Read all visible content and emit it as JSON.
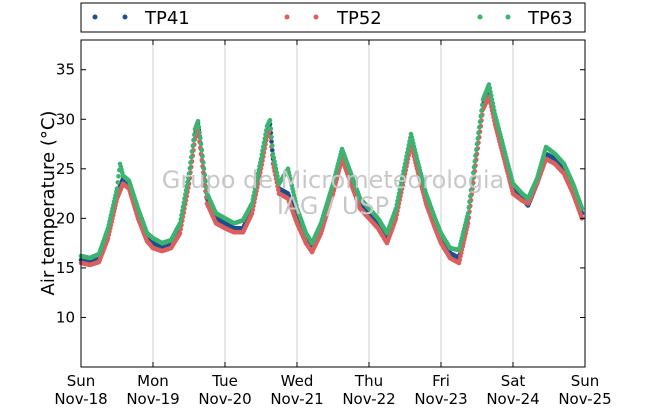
{
  "chart_data": {
    "type": "scatter",
    "title": "",
    "xlabel": "",
    "ylabel": "Air temperature (°C)",
    "ylim": [
      5,
      38
    ],
    "yticks": [
      10,
      15,
      20,
      25,
      30,
      35
    ],
    "xlim": [
      "2018-11-18 00:00",
      "2018-11-25 00:00"
    ],
    "xticks": [
      {
        "day": "Sun",
        "date": "Nov-18"
      },
      {
        "day": "Mon",
        "date": "Nov-19"
      },
      {
        "day": "Tue",
        "date": "Nov-20"
      },
      {
        "day": "Wed",
        "date": "Nov-21"
      },
      {
        "day": "Thu",
        "date": "Nov-22"
      },
      {
        "day": "Fri",
        "date": "Nov-23"
      },
      {
        "day": "Sat",
        "date": "Nov-24"
      },
      {
        "day": "Sun",
        "date": "Nov-25"
      }
    ],
    "vertical_grid": true,
    "legend_position": "top",
    "watermark": [
      "Grupo de Micrometeorologia",
      "IAG / USP"
    ],
    "series": [
      {
        "name": "TP41",
        "color": "#1f4e8c",
        "points": [
          [
            "2018-11-18 00:00",
            15.8
          ],
          [
            "2018-11-18 03:00",
            15.6
          ],
          [
            "2018-11-18 06:00",
            16.0
          ],
          [
            "2018-11-18 09:00",
            18.5
          ],
          [
            "2018-11-18 12:00",
            22.5
          ],
          [
            "2018-11-18 14:00",
            24.0
          ],
          [
            "2018-11-18 16:00",
            23.5
          ],
          [
            "2018-11-18 19:00",
            20.5
          ],
          [
            "2018-11-18 22:00",
            18.0
          ],
          [
            "2018-11-19 00:00",
            17.5
          ],
          [
            "2018-11-19 03:00",
            17.0
          ],
          [
            "2018-11-19 06:00",
            17.3
          ],
          [
            "2018-11-19 09:00",
            19.0
          ],
          [
            "2018-11-19 12:00",
            24.0
          ],
          [
            "2018-11-19 14:00",
            28.5
          ],
          [
            "2018-11-19 15:00",
            29.6
          ],
          [
            "2018-11-19 16:00",
            27.0
          ],
          [
            "2018-11-19 18:00",
            22.0
          ],
          [
            "2018-11-19 21:00",
            20.0
          ],
          [
            "2018-11-20 00:00",
            19.5
          ],
          [
            "2018-11-20 03:00",
            19.0
          ],
          [
            "2018-11-20 06:00",
            19.0
          ],
          [
            "2018-11-20 09:00",
            21.0
          ],
          [
            "2018-11-20 12:00",
            25.5
          ],
          [
            "2018-11-20 14:00",
            28.8
          ],
          [
            "2018-11-20 15:00",
            29.5
          ],
          [
            "2018-11-20 16:00",
            26.0
          ],
          [
            "2018-11-20 18:00",
            23.0
          ],
          [
            "2018-11-20 21:00",
            22.5
          ],
          [
            "2018-11-21 00:00",
            20.0
          ],
          [
            "2018-11-21 03:00",
            18.0
          ],
          [
            "2018-11-21 05:00",
            17.0
          ],
          [
            "2018-11-21 08:00",
            19.0
          ],
          [
            "2018-11-21 12:00",
            23.0
          ],
          [
            "2018-11-21 15:00",
            26.5
          ],
          [
            "2018-11-21 18:00",
            24.0
          ],
          [
            "2018-11-21 21:00",
            21.5
          ],
          [
            "2018-11-22 00:00",
            20.5
          ],
          [
            "2018-11-22 03:00",
            19.5
          ],
          [
            "2018-11-22 06:00",
            18.0
          ],
          [
            "2018-11-22 09:00",
            20.5
          ],
          [
            "2018-11-22 12:00",
            25.0
          ],
          [
            "2018-11-22 14:00",
            28.0
          ],
          [
            "2018-11-22 16:00",
            25.5
          ],
          [
            "2018-11-22 19:00",
            22.0
          ],
          [
            "2018-11-22 22:00",
            19.5
          ],
          [
            "2018-11-23 00:00",
            18.0
          ],
          [
            "2018-11-23 03:00",
            16.5
          ],
          [
            "2018-11-23 06:00",
            16.0
          ],
          [
            "2018-11-23 09:00",
            20.0
          ],
          [
            "2018-11-23 12:00",
            27.0
          ],
          [
            "2018-11-23 14:00",
            31.5
          ],
          [
            "2018-11-23 16:00",
            32.8
          ],
          [
            "2018-11-23 18:00",
            30.0
          ],
          [
            "2018-11-23 21:00",
            26.5
          ],
          [
            "2018-11-24 00:00",
            23.0
          ],
          [
            "2018-11-24 03:00",
            22.0
          ],
          [
            "2018-11-24 05:00",
            21.3
          ],
          [
            "2018-11-24 08:00",
            23.5
          ],
          [
            "2018-11-24 11:00",
            26.5
          ],
          [
            "2018-11-24 14:00",
            26.0
          ],
          [
            "2018-11-24 17:00",
            25.0
          ],
          [
            "2018-11-24 20:00",
            23.0
          ],
          [
            "2018-11-24 23:00",
            20.5
          ]
        ]
      },
      {
        "name": "TP52",
        "color": "#d9605e",
        "points": [
          [
            "2018-11-18 00:00",
            15.5
          ],
          [
            "2018-11-18 03:00",
            15.3
          ],
          [
            "2018-11-18 06:00",
            15.6
          ],
          [
            "2018-11-18 09:00",
            18.0
          ],
          [
            "2018-11-18 12:00",
            22.0
          ],
          [
            "2018-11-18 14:00",
            23.5
          ],
          [
            "2018-11-18 16:00",
            23.0
          ],
          [
            "2018-11-18 19:00",
            20.0
          ],
          [
            "2018-11-18 22:00",
            17.7
          ],
          [
            "2018-11-19 00:00",
            17.0
          ],
          [
            "2018-11-19 03:00",
            16.7
          ],
          [
            "2018-11-19 06:00",
            17.0
          ],
          [
            "2018-11-19 09:00",
            18.5
          ],
          [
            "2018-11-19 12:00",
            23.5
          ],
          [
            "2018-11-19 14:00",
            28.0
          ],
          [
            "2018-11-19 15:00",
            29.0
          ],
          [
            "2018-11-19 16:00",
            26.5
          ],
          [
            "2018-11-19 18:00",
            21.5
          ],
          [
            "2018-11-19 21:00",
            19.5
          ],
          [
            "2018-11-20 00:00",
            19.0
          ],
          [
            "2018-11-20 03:00",
            18.6
          ],
          [
            "2018-11-20 06:00",
            18.6
          ],
          [
            "2018-11-20 09:00",
            20.5
          ],
          [
            "2018-11-20 12:00",
            25.0
          ],
          [
            "2018-11-20 14:00",
            28.3
          ],
          [
            "2018-11-20 15:00",
            29.0
          ],
          [
            "2018-11-20 16:00",
            25.5
          ],
          [
            "2018-11-20 18:00",
            22.5
          ],
          [
            "2018-11-20 21:00",
            22.0
          ],
          [
            "2018-11-21 00:00",
            19.5
          ],
          [
            "2018-11-21 03:00",
            17.5
          ],
          [
            "2018-11-21 05:00",
            16.6
          ],
          [
            "2018-11-21 08:00",
            18.5
          ],
          [
            "2018-11-21 12:00",
            22.5
          ],
          [
            "2018-11-21 15:00",
            26.0
          ],
          [
            "2018-11-21 18:00",
            23.5
          ],
          [
            "2018-11-21 21:00",
            21.0
          ],
          [
            "2018-11-22 00:00",
            20.0
          ],
          [
            "2018-11-22 03:00",
            19.0
          ],
          [
            "2018-11-22 06:00",
            17.5
          ],
          [
            "2018-11-22 09:00",
            20.0
          ],
          [
            "2018-11-22 12:00",
            24.5
          ],
          [
            "2018-11-22 14:00",
            27.5
          ],
          [
            "2018-11-22 16:00",
            25.0
          ],
          [
            "2018-11-22 19:00",
            21.5
          ],
          [
            "2018-11-22 22:00",
            19.0
          ],
          [
            "2018-11-23 00:00",
            17.5
          ],
          [
            "2018-11-23 03:00",
            16.0
          ],
          [
            "2018-11-23 06:00",
            15.5
          ],
          [
            "2018-11-23 09:00",
            19.5
          ],
          [
            "2018-11-23 12:00",
            26.5
          ],
          [
            "2018-11-23 14:00",
            31.0
          ],
          [
            "2018-11-23 16:00",
            32.3
          ],
          [
            "2018-11-23 18:00",
            29.5
          ],
          [
            "2018-11-23 21:00",
            26.0
          ],
          [
            "2018-11-24 00:00",
            22.5
          ],
          [
            "2018-11-24 03:00",
            21.8
          ],
          [
            "2018-11-24 05:00",
            21.5
          ],
          [
            "2018-11-24 08:00",
            23.5
          ],
          [
            "2018-11-24 11:00",
            26.0
          ],
          [
            "2018-11-24 14:00",
            25.5
          ],
          [
            "2018-11-24 17:00",
            24.5
          ],
          [
            "2018-11-24 20:00",
            22.5
          ],
          [
            "2018-11-24 23:00",
            20.0
          ]
        ]
      },
      {
        "name": "TP63",
        "color": "#3cb371",
        "points": [
          [
            "2018-11-18 00:00",
            16.2
          ],
          [
            "2018-11-18 03:00",
            16.0
          ],
          [
            "2018-11-18 06:00",
            16.4
          ],
          [
            "2018-11-18 09:00",
            19.0
          ],
          [
            "2018-11-18 12:00",
            23.0
          ],
          [
            "2018-11-18 13:00",
            25.5
          ],
          [
            "2018-11-18 14:00",
            24.3
          ],
          [
            "2018-11-18 16:00",
            23.8
          ],
          [
            "2018-11-18 19:00",
            21.0
          ],
          [
            "2018-11-18 22:00",
            18.5
          ],
          [
            "2018-11-19 00:00",
            18.0
          ],
          [
            "2018-11-19 03:00",
            17.5
          ],
          [
            "2018-11-19 06:00",
            17.8
          ],
          [
            "2018-11-19 09:00",
            19.5
          ],
          [
            "2018-11-19 12:00",
            24.5
          ],
          [
            "2018-11-19 14:00",
            29.0
          ],
          [
            "2018-11-19 15:00",
            29.8
          ],
          [
            "2018-11-19 16:00",
            27.5
          ],
          [
            "2018-11-19 18:00",
            22.5
          ],
          [
            "2018-11-19 21:00",
            20.5
          ],
          [
            "2018-11-20 00:00",
            20.0
          ],
          [
            "2018-11-20 03:00",
            19.5
          ],
          [
            "2018-11-20 06:00",
            19.8
          ],
          [
            "2018-11-20 09:00",
            21.5
          ],
          [
            "2018-11-20 12:00",
            26.0
          ],
          [
            "2018-11-20 14:00",
            29.3
          ],
          [
            "2018-11-20 15:00",
            29.9
          ],
          [
            "2018-11-20 16:00",
            26.5
          ],
          [
            "2018-11-20 18:00",
            23.5
          ],
          [
            "2018-11-20 21:00",
            25.0
          ],
          [
            "2018-11-21 00:00",
            21.0
          ],
          [
            "2018-11-21 03:00",
            18.5
          ],
          [
            "2018-11-21 05:00",
            17.5
          ],
          [
            "2018-11-21 08:00",
            19.5
          ],
          [
            "2018-11-21 12:00",
            23.5
          ],
          [
            "2018-11-21 15:00",
            27.0
          ],
          [
            "2018-11-21 18:00",
            24.5
          ],
          [
            "2018-11-21 21:00",
            22.0
          ],
          [
            "2018-11-22 00:00",
            21.0
          ],
          [
            "2018-11-22 03:00",
            20.0
          ],
          [
            "2018-11-22 06:00",
            18.5
          ],
          [
            "2018-11-22 09:00",
            21.0
          ],
          [
            "2018-11-22 12:00",
            25.5
          ],
          [
            "2018-11-22 14:00",
            28.5
          ],
          [
            "2018-11-22 16:00",
            26.0
          ],
          [
            "2018-11-22 19:00",
            22.5
          ],
          [
            "2018-11-22 22:00",
            20.0
          ],
          [
            "2018-11-23 00:00",
            18.5
          ],
          [
            "2018-11-23 03:00",
            17.0
          ],
          [
            "2018-11-23 06:00",
            16.8
          ],
          [
            "2018-11-23 09:00",
            20.5
          ],
          [
            "2018-11-23 12:00",
            27.5
          ],
          [
            "2018-11-23 14:00",
            32.0
          ],
          [
            "2018-11-23 16:00",
            33.5
          ],
          [
            "2018-11-23 18:00",
            30.5
          ],
          [
            "2018-11-23 21:00",
            27.0
          ],
          [
            "2018-11-24 00:00",
            23.5
          ],
          [
            "2018-11-24 03:00",
            22.5
          ],
          [
            "2018-11-24 05:00",
            22.0
          ],
          [
            "2018-11-24 08:00",
            24.0
          ],
          [
            "2018-11-24 11:00",
            27.2
          ],
          [
            "2018-11-24 14:00",
            26.5
          ],
          [
            "2018-11-24 17:00",
            25.5
          ],
          [
            "2018-11-24 20:00",
            23.5
          ],
          [
            "2018-11-24 23:00",
            21.0
          ]
        ]
      }
    ]
  }
}
